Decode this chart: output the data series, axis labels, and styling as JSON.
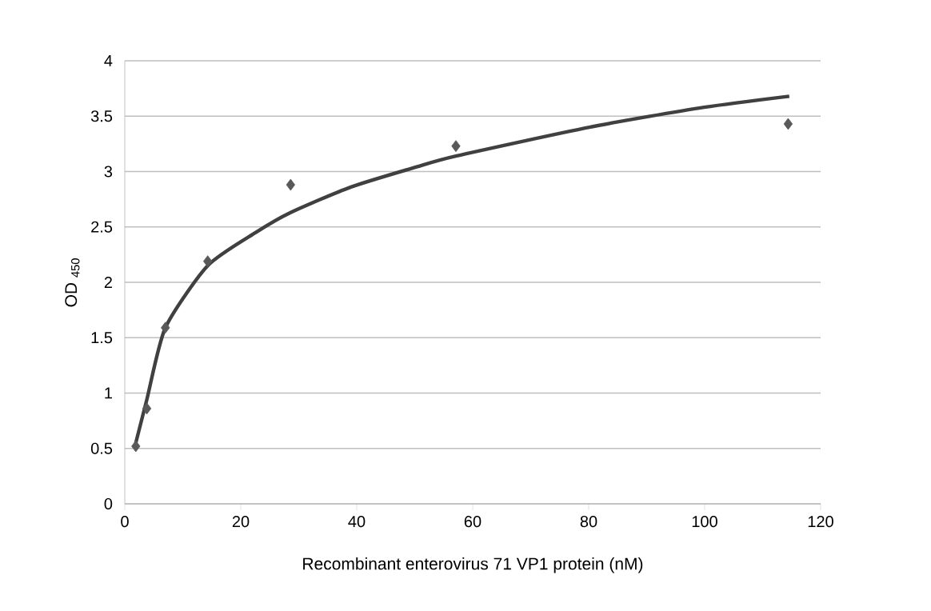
{
  "chart_data": {
    "type": "scatter",
    "xlabel": "Recombinant enterovirus 71 VP1 protein (nM)",
    "ylabel": "OD $_{450}$",
    "xlim": [
      0,
      120
    ],
    "xticks": [
      0,
      20,
      40,
      60,
      80,
      100,
      120
    ],
    "ylim": [
      0,
      4
    ],
    "yticks": [
      0,
      0.5,
      1,
      1.5,
      2,
      2.5,
      3,
      3.5,
      4
    ],
    "grid": "y",
    "series": [
      {
        "color": "#595959",
        "marker": "diamond",
        "x": [
          1.9,
          3.8,
          7.0,
          14.3,
          28.6,
          57.1,
          114.4
        ],
        "values": [
          0.52,
          0.86,
          1.59,
          2.19,
          2.88,
          3.23,
          3.43
        ]
      },
      {
        "type": "line",
        "color": "#404040",
        "marker": "none",
        "line_style": "solid",
        "x": [
          1.9,
          3.8,
          7.0,
          14.3,
          22.6,
          28.6,
          39.0,
          50.2,
          57.1,
          80.1,
          99.9,
          114.6
        ],
        "values": [
          0.55,
          0.94,
          1.59,
          2.15,
          2.45,
          2.63,
          2.86,
          3.04,
          3.14,
          3.4,
          3.58,
          3.68
        ]
      }
    ]
  }
}
